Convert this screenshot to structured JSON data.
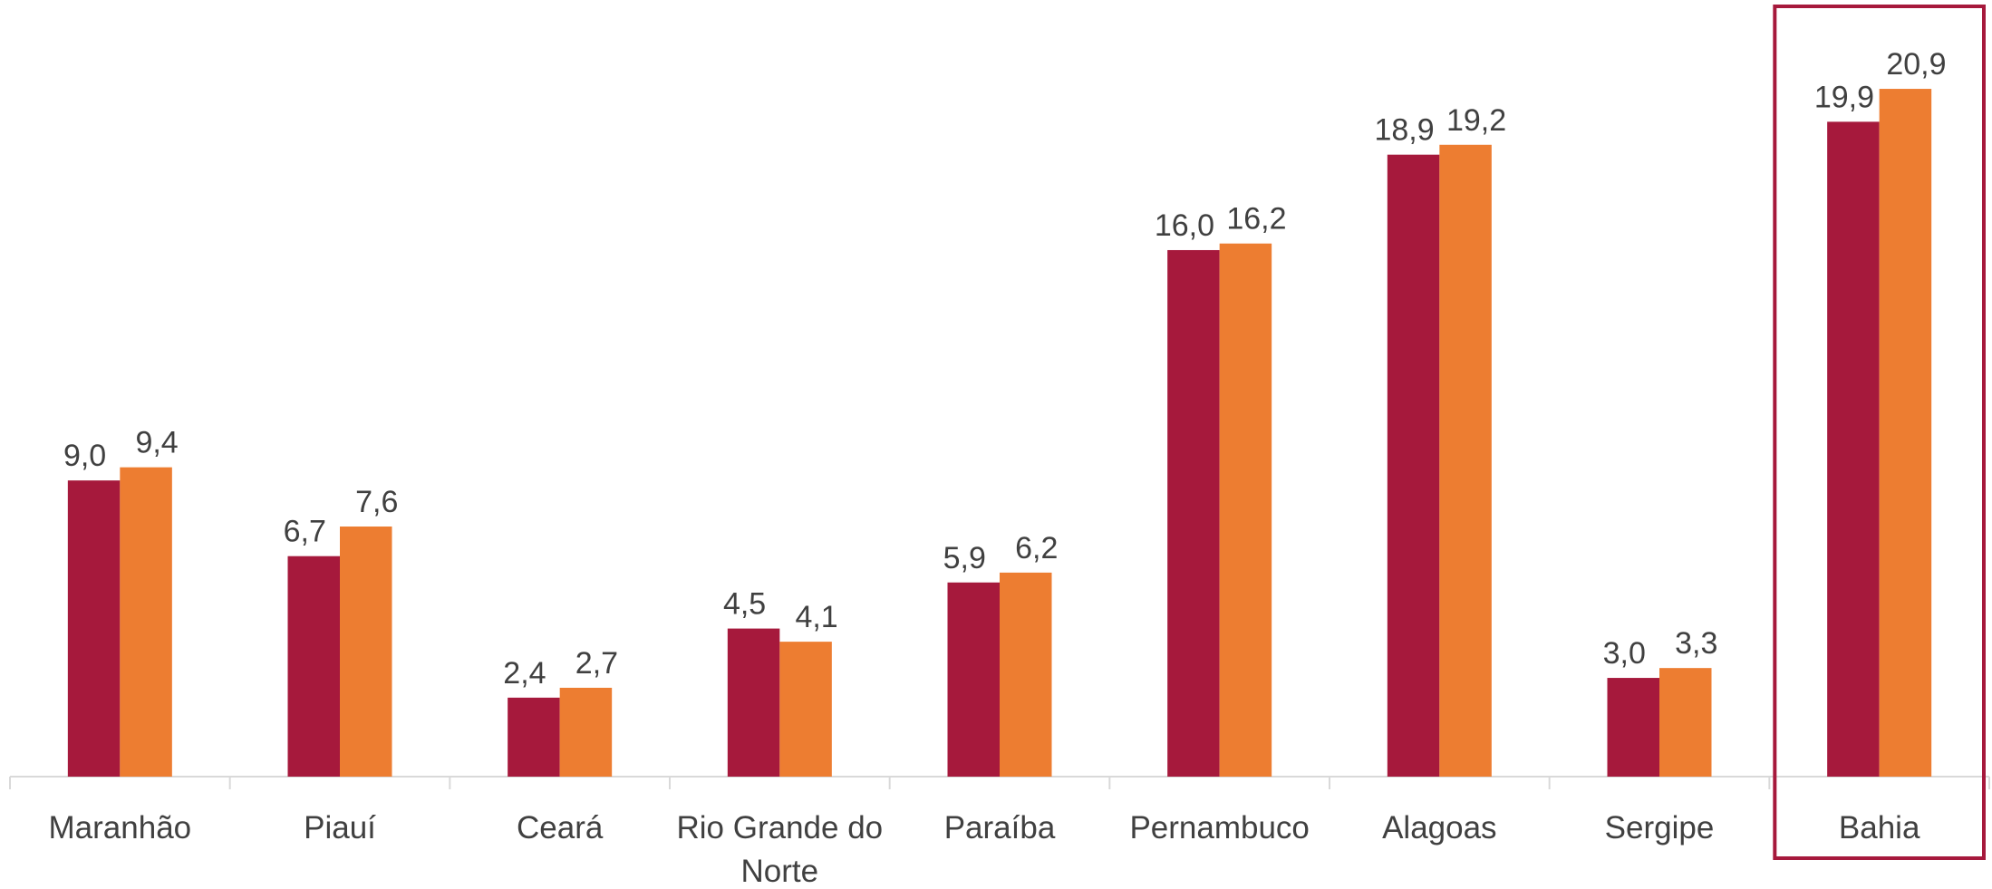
{
  "chart_data": {
    "type": "bar",
    "categories": [
      "Maranhão",
      "Piauí",
      "Ceará",
      "Rio Grande do Norte",
      "Paraíba",
      "Pernambuco",
      "Alagoas",
      "Sergipe",
      "Bahia"
    ],
    "series": [
      {
        "color": "#a6193c",
        "values": [
          9.0,
          6.7,
          2.4,
          4.5,
          5.9,
          16.0,
          18.9,
          3.0,
          19.9
        ],
        "value_labels": [
          "9,0",
          "6,7",
          "2,4",
          "4,5",
          "5,9",
          "16,0",
          "18,9",
          "3,0",
          "19,9"
        ]
      },
      {
        "color": "#ed7d31",
        "values": [
          9.4,
          7.6,
          2.7,
          4.1,
          6.2,
          16.2,
          19.2,
          3.3,
          20.9
        ],
        "value_labels": [
          "9,4",
          "7,6",
          "2,7",
          "4,1",
          "6,2",
          "16,2",
          "19,2",
          "3,3",
          "20,9"
        ]
      }
    ],
    "ylim": [
      0,
      23.6
    ]
  }
}
